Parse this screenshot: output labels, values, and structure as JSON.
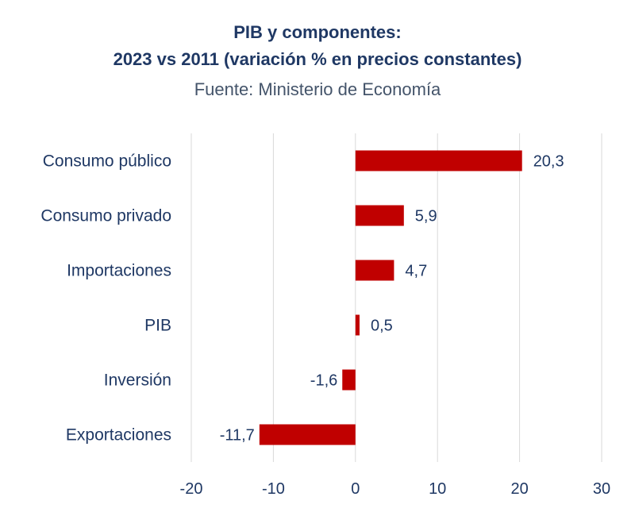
{
  "chart_data": {
    "type": "bar",
    "orientation": "horizontal",
    "title_line1": "PIB y componentes:",
    "title_line2": "2023 vs 2011 (variación  % en precios constantes)",
    "subtitle": "Fuente:  Ministerio de Economía",
    "categories": [
      "Consumo público",
      "Consumo privado",
      "Importaciones",
      "PIB",
      "Inversión",
      "Exportaciones"
    ],
    "values": [
      20.3,
      5.9,
      4.7,
      0.5,
      -1.6,
      -11.7
    ],
    "value_labels": [
      "20,3",
      "5,9",
      "4,7",
      "0,5",
      "-1,6",
      "-11,7"
    ],
    "xlim": [
      -20,
      30
    ],
    "xticks": [
      -20,
      -10,
      0,
      10,
      20,
      30
    ],
    "xtick_labels": [
      "-20",
      "-10",
      "0",
      "10",
      "20",
      "30"
    ],
    "grid": true,
    "bar_color": "#c00000",
    "grid_color": "#d9d9d9",
    "xlabel": "",
    "ylabel": ""
  }
}
